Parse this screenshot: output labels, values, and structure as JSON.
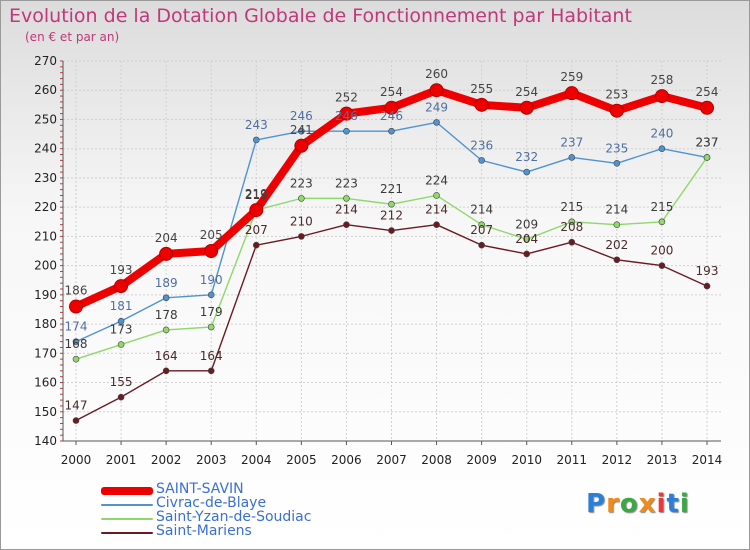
{
  "title": "Evolution de la Dotation Globale de Fonctionnement par Habitant",
  "subtitle": "(en € et par an)",
  "logo": {
    "text": "Proxiti",
    "colors": [
      "#2b7fd8",
      "#f08a1c",
      "#3aa843",
      "#f08a1c",
      "#e83a3a",
      "#2b7fd8",
      "#3aa843"
    ]
  },
  "chart_data": {
    "type": "line",
    "x": [
      "2000",
      "2001",
      "2002",
      "2003",
      "2004",
      "2005",
      "2006",
      "2007",
      "2008",
      "2009",
      "2010",
      "2011",
      "2012",
      "2013",
      "2014"
    ],
    "ylim": [
      140,
      270
    ],
    "yticks": [
      140,
      150,
      160,
      170,
      180,
      190,
      200,
      210,
      220,
      230,
      240,
      250,
      260,
      270
    ],
    "grid": true,
    "legend": "bottom-left",
    "series": [
      {
        "name": "SAINT-SAVIN",
        "color": "#ee0000",
        "values": [
          186,
          193,
          204,
          205,
          219,
          241,
          252,
          254,
          260,
          255,
          254,
          259,
          253,
          258,
          254
        ]
      },
      {
        "name": "Civrac-de-Blaye",
        "color": "#4f93d3",
        "values": [
          174,
          181,
          189,
          190,
          243,
          246,
          246,
          246,
          249,
          236,
          232,
          237,
          235,
          240,
          237
        ]
      },
      {
        "name": "Saint-Yzan-de-Soudiac",
        "color": "#8fd86a",
        "values": [
          168,
          173,
          178,
          179,
          219,
          223,
          223,
          221,
          224,
          214,
          209,
          215,
          214,
          215,
          237
        ]
      },
      {
        "name": "Saint-Mariens",
        "color": "#6b1a22",
        "values": [
          147,
          155,
          164,
          164,
          207,
          210,
          214,
          212,
          214,
          207,
          204,
          208,
          202,
          200,
          193
        ]
      }
    ]
  }
}
